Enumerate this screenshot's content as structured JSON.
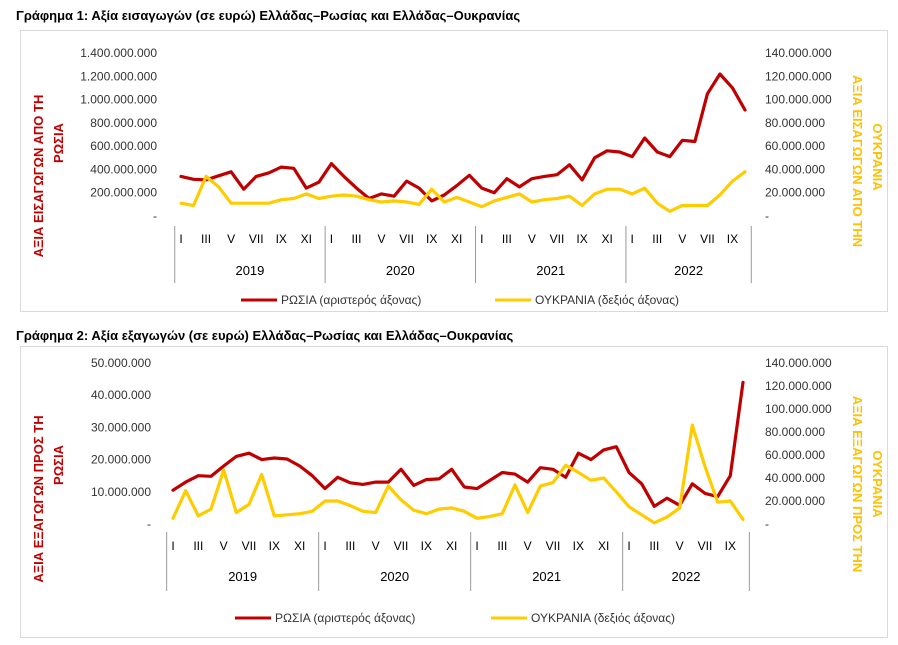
{
  "charts": [
    {
      "title": "Γράφημα 1: Αξία εισαγωγών (σε ευρώ) Ελλάδας–Ρωσίας και Ελλάδας–Ουκρανίας",
      "ylabel_left": [
        "ΑΞΙΑ ΕΙΣΑΓΩΓΩΝ ΑΠΟ ΤΗ",
        "ΡΩΣΙΑ"
      ],
      "ylabel_right": [
        "ΑΞΙΑ ΕΙΣΑΓΩΓΩΝ ΑΠΟ ΤΗΝ",
        "ΟΥΚΡΑΝΙΑ"
      ],
      "left_ticks": [
        "-",
        "200.000.000",
        "400.000.000",
        "600.000.000",
        "800.000.000",
        "1.000.000.000",
        "1.200.000.000",
        "1.400.000.000"
      ],
      "right_ticks": [
        "-",
        "20.000.000",
        "40.000.000",
        "60.000.000",
        "80.000.000",
        "100.000.000",
        "120.000.000",
        "140.000.000"
      ],
      "legend": [
        "ΡΩΣΙΑ (αριστερός άξονας)",
        "ΟΥΚΡΑΝΙΑ (δεξιός άξονας)"
      ]
    },
    {
      "title": "Γράφημα 2: Αξία εξαγωγών (σε ευρώ) Ελλάδας–Ρωσίας και Ελλάδας–Ουκρανίας",
      "ylabel_left": [
        "ΑΞΙΑ ΕΞΑΓΩΓΩΝ ΠΡΟΣ ΤΗ",
        "ΡΩΣΙΑ"
      ],
      "ylabel_right": [
        "ΑΞΙΑ ΕΞΑΓΩΓΩΝ ΠΡΟΣ ΤΗΝ",
        "ΟΥΚΡΑΝΙΑ"
      ],
      "left_ticks": [
        "-",
        "10.000.000",
        "20.000.000",
        "30.000.000",
        "40.000.000",
        "50.000.000"
      ],
      "right_ticks": [
        "-",
        "20.000.000",
        "40.000.000",
        "60.000.000",
        "80.000.000",
        "100.000.000",
        "120.000.000",
        "140.000.000"
      ],
      "legend": [
        "ΡΩΣΙΑ (αριστερός άξονας)",
        "ΟΥΚΡΑΝΙΑ (δεξιός άξονας)"
      ]
    }
  ],
  "chart_data": [
    {
      "type": "line",
      "x_tick_labels": [
        "I",
        "III",
        "V",
        "VII",
        "IX",
        "XI"
      ],
      "years": [
        "2019",
        "2020",
        "2021",
        "2022"
      ],
      "months_per_year": [
        12,
        12,
        12,
        10
      ],
      "left_axis_range": [
        0,
        1400000000
      ],
      "right_axis_range": [
        0,
        140000000
      ],
      "grid": false,
      "legend_position": "bottom",
      "series": [
        {
          "name": "ΡΩΣΙΑ (αριστερός άξονας)",
          "axis": "left",
          "color": "#c00000",
          "values": [
            340000000,
            315000000,
            310000000,
            345000000,
            380000000,
            230000000,
            340000000,
            370000000,
            420000000,
            410000000,
            240000000,
            290000000,
            450000000,
            340000000,
            240000000,
            150000000,
            190000000,
            170000000,
            300000000,
            240000000,
            130000000,
            180000000,
            260000000,
            350000000,
            240000000,
            200000000,
            320000000,
            250000000,
            320000000,
            340000000,
            355000000,
            440000000,
            310000000,
            500000000,
            560000000,
            550000000,
            510000000,
            670000000,
            550000000,
            510000000,
            650000000,
            640000000,
            1050000000,
            1220000000,
            1100000000,
            910000000
          ]
        },
        {
          "name": "ΟΥΚΡΑΝΙΑ (δεξιός άξονας)",
          "axis": "right",
          "color": "#ffcc00",
          "values": [
            11000000,
            9000000,
            34000000,
            25000000,
            11000000,
            11000000,
            11000000,
            11000000,
            14000000,
            15000000,
            19000000,
            15000000,
            17000000,
            18000000,
            17000000,
            14000000,
            12000000,
            13000000,
            12000000,
            10000000,
            23000000,
            12000000,
            16000000,
            12000000,
            8000000,
            13000000,
            16000000,
            19000000,
            12000000,
            14000000,
            15000000,
            17000000,
            9000000,
            19000000,
            23000000,
            23000000,
            19000000,
            24000000,
            11000000,
            4000000,
            9000000,
            9000000,
            9000000,
            18000000,
            30000000,
            38000000
          ]
        }
      ]
    },
    {
      "type": "line",
      "x_tick_labels": [
        "I",
        "III",
        "V",
        "VII",
        "IX",
        "XI"
      ],
      "years": [
        "2019",
        "2020",
        "2021",
        "2022"
      ],
      "months_per_year": [
        12,
        12,
        12,
        10
      ],
      "left_axis_range": [
        0,
        50000000
      ],
      "right_axis_range": [
        0,
        140000000
      ],
      "grid": false,
      "legend_position": "bottom",
      "series": [
        {
          "name": "ΡΩΣΙΑ (αριστερός άξονας)",
          "axis": "left",
          "color": "#c00000",
          "values": [
            10500000,
            13000000,
            15000000,
            14800000,
            18000000,
            21000000,
            22000000,
            20000000,
            20500000,
            20200000,
            18000000,
            15000000,
            11000000,
            14500000,
            12800000,
            12300000,
            13000000,
            13000000,
            17000000,
            12000000,
            13800000,
            14000000,
            17000000,
            11500000,
            11000000,
            13500000,
            16000000,
            15500000,
            13000000,
            17500000,
            17000000,
            14500000,
            22000000,
            20000000,
            23000000,
            24000000,
            16000000,
            12500000,
            5500000,
            8000000,
            5800000,
            12500000,
            9500000,
            8500000,
            15000000,
            44000000
          ]
        },
        {
          "name": "ΟΥΚΡΑΝΙΑ (δεξιός άξονας)",
          "axis": "right",
          "color": "#ffcc00",
          "values": [
            5000000,
            29000000,
            7000000,
            13000000,
            47000000,
            10000000,
            17000000,
            43000000,
            7000000,
            8000000,
            9000000,
            11000000,
            20000000,
            20000000,
            16000000,
            11000000,
            10000000,
            33000000,
            21000000,
            12000000,
            9000000,
            13000000,
            14000000,
            11000000,
            5000000,
            6500000,
            9000000,
            34000000,
            10000000,
            33000000,
            36000000,
            51000000,
            45000000,
            38000000,
            40000000,
            28000000,
            15000000,
            8000000,
            1000000,
            6000000,
            14000000,
            86000000,
            50000000,
            19000000,
            20000000,
            4000000
          ]
        }
      ]
    }
  ]
}
